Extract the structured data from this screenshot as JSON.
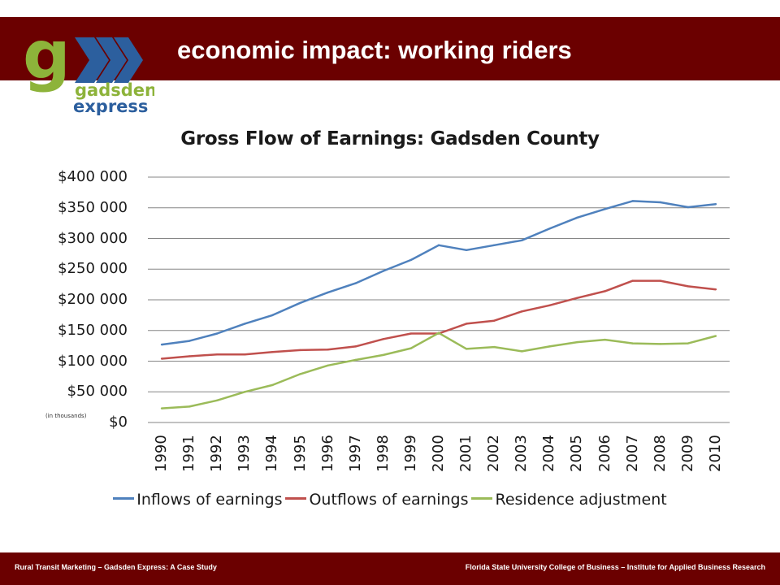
{
  "slide": {
    "title": "economic impact:  working riders",
    "footer_left": "Rural Transit Marketing – Gadsden Express: A Case Study",
    "footer_right": "Florida State University College of Business –  Institute for Applied Business Research"
  },
  "logo": {
    "letter_g": "g",
    "word1": "gadsden",
    "word2": "express",
    "green": "#8db33a",
    "blue": "#2c5f9e"
  },
  "colors": {
    "header_bg": "#6b0000",
    "grid": "#868686"
  },
  "chart_data": {
    "type": "line",
    "title": "Gross Flow of Earnings: Gadsden County",
    "unit_note": "(in thousands)",
    "ylim": [
      0,
      400000
    ],
    "yticks": [
      0,
      50000,
      100000,
      150000,
      200000,
      250000,
      300000,
      350000,
      400000
    ],
    "ytick_labels": [
      "$0",
      "$50 000",
      "$100 000",
      "$150 000",
      "$200 000",
      "$250 000",
      "$300 000",
      "$350 000",
      "$400 000"
    ],
    "grid": true,
    "legend": "bottom",
    "categories": [
      "1990",
      "1991",
      "1992",
      "1993",
      "1994",
      "1995",
      "1996",
      "1997",
      "1998",
      "1999",
      "2000",
      "2001",
      "2002",
      "2003",
      "2004",
      "2005",
      "2006",
      "2007",
      "2008",
      "2009",
      "2010"
    ],
    "series": [
      {
        "name": "Inflows of earnings",
        "color": "#4f81bd",
        "values": [
          127000,
          133000,
          145000,
          161000,
          175000,
          195000,
          212000,
          227000,
          247000,
          265000,
          289000,
          281000,
          289000,
          297000,
          316000,
          334000,
          348000,
          361000,
          359000,
          351000,
          356000
        ]
      },
      {
        "name": "Outflows of earnings",
        "color": "#c0504d",
        "values": [
          104000,
          108000,
          111000,
          111000,
          115000,
          118000,
          119000,
          124000,
          136000,
          145000,
          145000,
          161000,
          166000,
          181000,
          191000,
          203000,
          214000,
          231000,
          231000,
          222000,
          217000
        ]
      },
      {
        "name": "Residence adjustment",
        "color": "#9bbb59",
        "values": [
          23000,
          26000,
          36000,
          50000,
          61000,
          79000,
          93000,
          102000,
          110000,
          121000,
          146000,
          120000,
          123000,
          116000,
          124000,
          131000,
          135000,
          129000,
          128000,
          129000,
          141000
        ]
      }
    ]
  }
}
